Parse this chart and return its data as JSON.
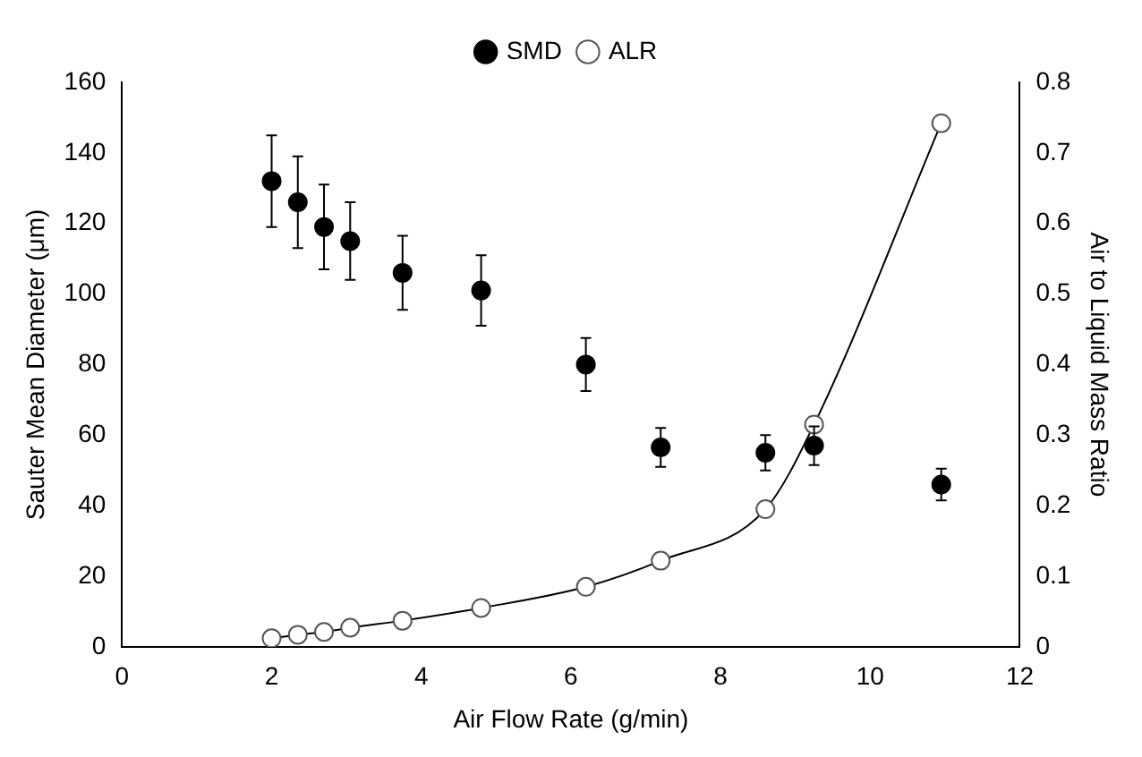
{
  "chart_data": {
    "type": "scatter",
    "xlabel": "Air Flow Rate (g/min)",
    "ylabel": "Sauter Mean Diameter (μm)",
    "y2label": "Air to Liquid Mass Ratio",
    "xlim": [
      0,
      12
    ],
    "xticks": [
      0,
      2,
      4,
      6,
      8,
      10,
      12
    ],
    "ylim": [
      0,
      160
    ],
    "yticks": [
      0,
      20,
      40,
      60,
      80,
      100,
      120,
      140,
      160
    ],
    "y2lim": [
      0,
      0.8
    ],
    "y2ticks": [
      0,
      0.1,
      0.2,
      0.3,
      0.4,
      0.5,
      0.6,
      0.7,
      0.8
    ],
    "x": [
      2.0,
      2.35,
      2.7,
      3.05,
      3.75,
      4.8,
      6.2,
      7.2,
      8.6,
      9.25,
      10.95
    ],
    "series": [
      {
        "name": "SMD",
        "color": "#000000",
        "marker": "circle",
        "values": [
          132,
          126,
          119,
          115,
          106,
          101,
          80,
          56.5,
          55,
          57,
          46
        ],
        "errors": [
          13,
          13,
          12,
          11,
          10.5,
          10,
          7.5,
          5.5,
          5,
          5.5,
          4.5
        ]
      },
      {
        "name": "ALR",
        "type": "line",
        "axis": "y2",
        "color": "#000000",
        "marker": "circle",
        "line_style": "solid",
        "values": [
          0.012,
          0.017,
          0.021,
          0.027,
          0.037,
          0.055,
          0.085,
          0.122,
          0.195,
          0.315,
          0.742
        ]
      }
    ],
    "legend": "top",
    "grid": false
  }
}
